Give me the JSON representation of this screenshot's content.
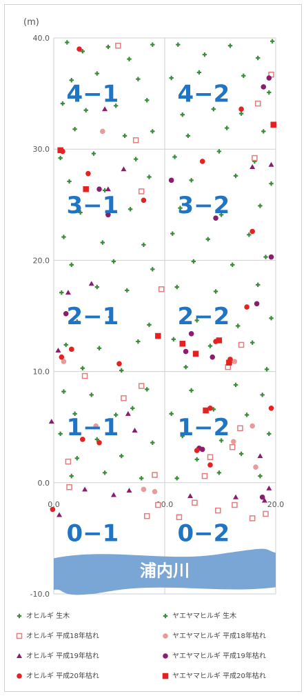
{
  "chart_data": {
    "type": "scatter",
    "unit_label": "(m)",
    "xlim": [
      0,
      20
    ],
    "ylim": [
      -10,
      40
    ],
    "x_ticks": [
      "0.0",
      "10.0",
      "20.0"
    ],
    "y_ticks": [
      "-10.0",
      "0.0",
      "10.0",
      "20.0",
      "30.0",
      "40.0"
    ],
    "grid": true,
    "sectors": [
      {
        "label": "4−1",
        "x": 3.5,
        "y": 35
      },
      {
        "label": "4−2",
        "x": 13.5,
        "y": 35
      },
      {
        "label": "3−1",
        "x": 3.5,
        "y": 25
      },
      {
        "label": "3−2",
        "x": 13.5,
        "y": 25
      },
      {
        "label": "2−1",
        "x": 3.5,
        "y": 15
      },
      {
        "label": "2−2",
        "x": 13.5,
        "y": 15
      },
      {
        "label": "1−1",
        "x": 3.5,
        "y": 5
      },
      {
        "label": "1−2",
        "x": 13.5,
        "y": 5
      },
      {
        "label": "0−1",
        "x": 3.5,
        "y": -4.5
      },
      {
        "label": "0−2",
        "x": 13.5,
        "y": -4.5
      }
    ],
    "river_label": "浦内川",
    "legend": [
      "オヒルギ 生木",
      "ヤエヤマヒルギ 生木",
      "オヒルギ 平成18年枯れ",
      "ヤエヤマヒルギ 平成18年枯れ",
      "オヒルギ 平成19年枯れ",
      "ヤエヤマヒルギ 平成19年枯れ",
      "オヒルギ 平成20年枯れ",
      "ヤエヤマヒルギ 平成20年枯れ"
    ],
    "series": [
      {
        "marker": "plus",
        "color": "#3c8a3c",
        "points": [
          [
            1.2,
            39.6
          ],
          [
            2.6,
            38.8
          ],
          [
            4.9,
            39.2
          ],
          [
            6.8,
            38.1
          ],
          [
            8.9,
            39.4
          ],
          [
            1.6,
            36.2
          ],
          [
            3.9,
            36.8
          ],
          [
            7.6,
            36.3
          ],
          [
            0.8,
            34.1
          ],
          [
            2.9,
            33.5
          ],
          [
            5.6,
            33.9
          ],
          [
            8.4,
            34.4
          ],
          [
            1.9,
            31.8
          ],
          [
            6.4,
            31.2
          ],
          [
            8.9,
            31.6
          ],
          [
            0.6,
            29.2
          ],
          [
            3.6,
            29.6
          ],
          [
            7.4,
            29.1
          ],
          [
            1.4,
            27.1
          ],
          [
            4.6,
            26.3
          ],
          [
            8.6,
            27.5
          ],
          [
            2.4,
            24.3
          ],
          [
            6.9,
            24.6
          ],
          [
            0.9,
            22.1
          ],
          [
            4.4,
            21.6
          ],
          [
            8.1,
            21.4
          ],
          [
            1.6,
            19.6
          ],
          [
            5.4,
            19.9
          ],
          [
            8.9,
            19.2
          ],
          [
            0.7,
            17.1
          ],
          [
            3.9,
            17.6
          ],
          [
            6.6,
            17.3
          ],
          [
            2.1,
            14.5
          ],
          [
            5.1,
            14.9
          ],
          [
            8.6,
            14.2
          ],
          [
            1.1,
            12.4
          ],
          [
            4.1,
            12.1
          ],
          [
            7.6,
            12.7
          ],
          [
            2.6,
            10.3
          ],
          [
            6.1,
            10.1
          ],
          [
            0.9,
            8.2
          ],
          [
            3.4,
            7.9
          ],
          [
            8.4,
            8.4
          ],
          [
            1.9,
            6.2
          ],
          [
            5.6,
            6.1
          ],
          [
            7.1,
            6.7
          ],
          [
            0.6,
            4.4
          ],
          [
            3.9,
            3.9
          ],
          [
            8.9,
            3.6
          ],
          [
            2.1,
            2.2
          ],
          [
            6.1,
            2.4
          ],
          [
            1.6,
            0.6
          ],
          [
            4.6,
            0.9
          ],
          [
            7.9,
            0.4
          ]
        ]
      },
      {
        "marker": "plus",
        "color": "#3c8a3c",
        "points": [
          [
            11.2,
            39.4
          ],
          [
            13.6,
            38.5
          ],
          [
            15.9,
            39.3
          ],
          [
            18.4,
            38.2
          ],
          [
            19.7,
            39.7
          ],
          [
            10.6,
            36.4
          ],
          [
            13.1,
            36.9
          ],
          [
            17.1,
            36.6
          ],
          [
            19.4,
            35.1
          ],
          [
            11.6,
            33.1
          ],
          [
            14.4,
            33.6
          ],
          [
            16.9,
            33.2
          ],
          [
            12.1,
            31.2
          ],
          [
            15.6,
            31.9
          ],
          [
            18.9,
            31.6
          ],
          [
            10.9,
            29.3
          ],
          [
            14.9,
            29.8
          ],
          [
            18.1,
            28.9
          ],
          [
            12.4,
            27.2
          ],
          [
            16.4,
            27.6
          ],
          [
            19.6,
            26.9
          ],
          [
            11.4,
            24.7
          ],
          [
            15.1,
            24.1
          ],
          [
            18.6,
            24.9
          ],
          [
            10.7,
            22.4
          ],
          [
            13.9,
            21.9
          ],
          [
            17.6,
            22.3
          ],
          [
            12.6,
            19.9
          ],
          [
            16.1,
            19.6
          ],
          [
            19.1,
            20.3
          ],
          [
            11.1,
            17.6
          ],
          [
            14.6,
            17.2
          ],
          [
            18.4,
            17.8
          ],
          [
            12.9,
            14.6
          ],
          [
            16.6,
            14.1
          ],
          [
            19.6,
            14.8
          ],
          [
            10.8,
            12.9
          ],
          [
            14.1,
            12.3
          ],
          [
            17.9,
            12.6
          ],
          [
            11.9,
            10.4
          ],
          [
            15.9,
            10.8
          ],
          [
            19.2,
            10.2
          ],
          [
            12.4,
            8.3
          ],
          [
            16.4,
            8.8
          ],
          [
            18.8,
            7.9
          ],
          [
            10.6,
            6.2
          ],
          [
            14.4,
            6.6
          ],
          [
            17.4,
            6.1
          ],
          [
            11.6,
            4.2
          ],
          [
            15.1,
            3.8
          ],
          [
            19.4,
            4.4
          ],
          [
            12.9,
            2.1
          ],
          [
            16.9,
            2.6
          ],
          [
            11.1,
            0.4
          ],
          [
            14.9,
            0.9
          ],
          [
            18.6,
            0.6
          ]
        ]
      },
      {
        "marker": "square",
        "color": "#e37b7b",
        "points": [
          [
            5.8,
            39.3
          ],
          [
            7.4,
            30.8
          ],
          [
            7.9,
            26.2
          ],
          [
            9.7,
            17.4
          ],
          [
            7.9,
            8.7
          ],
          [
            6.3,
            7.6
          ],
          [
            2.8,
            9.6
          ],
          [
            1.3,
            1.9
          ],
          [
            1.4,
            -0.4
          ],
          [
            9.1,
            0.7
          ],
          [
            9.4,
            -2.0
          ],
          [
            8.4,
            -3.0
          ],
          [
            19.6,
            36.7
          ],
          [
            18.4,
            34.1
          ],
          [
            18.1,
            29.2
          ],
          [
            16.9,
            12.4
          ],
          [
            15.7,
            10.4
          ],
          [
            16.8,
            4.9
          ],
          [
            16.1,
            3.2
          ],
          [
            14.1,
            2.3
          ],
          [
            13.6,
            0.6
          ],
          [
            12.7,
            -1.8
          ],
          [
            11.3,
            -3.1
          ],
          [
            14.8,
            -2.5
          ],
          [
            16.3,
            -2.0
          ],
          [
            17.9,
            -3.2
          ],
          [
            19.1,
            -2.8
          ]
        ]
      },
      {
        "marker": "circle",
        "color": "#e99b9b",
        "points": [
          [
            4.4,
            31.6
          ],
          [
            0.9,
            10.9
          ],
          [
            3.8,
            5.1
          ],
          [
            8.1,
            -0.6
          ],
          [
            9.1,
            -0.8
          ],
          [
            16.3,
            10.9
          ],
          [
            17.9,
            5.1
          ],
          [
            16.2,
            3.7
          ],
          [
            18.2,
            1.4
          ]
        ]
      },
      {
        "marker": "triangle",
        "color": "#8b1d6d",
        "points": [
          [
            4.6,
            33.6
          ],
          [
            6.3,
            28.2
          ],
          [
            4.9,
            26.4
          ],
          [
            4.9,
            24.3
          ],
          [
            1.3,
            17.1
          ],
          [
            3.4,
            17.9
          ],
          [
            0.4,
            11.9
          ],
          [
            -0.2,
            5.5
          ],
          [
            6.7,
            6.2
          ],
          [
            7.3,
            4.7
          ],
          [
            0.5,
            -2.9
          ],
          [
            2.8,
            -0.6
          ],
          [
            5.4,
            -1.1
          ],
          [
            6.8,
            -0.7
          ],
          [
            12.3,
            -1.2
          ],
          [
            19.6,
            28.6
          ],
          [
            17.9,
            28.4
          ],
          [
            18.6,
            2.4
          ],
          [
            19.4,
            -0.5
          ],
          [
            19.0,
            -1.6
          ],
          [
            16.4,
            -1.3
          ]
        ]
      },
      {
        "marker": "circle",
        "color": "#8b1d6d",
        "points": [
          [
            10.6,
            27.2
          ],
          [
            4.1,
            26.4
          ],
          [
            14.6,
            23.8
          ],
          [
            1.1,
            15.2
          ],
          [
            12.4,
            13.4
          ],
          [
            11.9,
            11.8
          ],
          [
            14.3,
            11.3
          ],
          [
            19.6,
            20.3
          ],
          [
            18.9,
            35.6
          ],
          [
            19.4,
            36.4
          ],
          [
            18.3,
            16.1
          ],
          [
            13.1,
            3.1
          ],
          [
            13.4,
            3.0
          ],
          [
            18.8,
            -1.3
          ],
          [
            4.9,
            24.1
          ]
        ]
      },
      {
        "marker": "circle",
        "color": "#e52222",
        "points": [
          [
            2.3,
            39.0
          ],
          [
            0.8,
            29.8
          ],
          [
            3.1,
            27.8
          ],
          [
            8.1,
            25.4
          ],
          [
            1.6,
            12.0
          ],
          [
            0.7,
            11.3
          ],
          [
            2.6,
            3.9
          ],
          [
            4.1,
            3.6
          ],
          [
            5.9,
            10.7
          ],
          [
            13.4,
            28.9
          ],
          [
            16.9,
            33.6
          ],
          [
            17.9,
            22.6
          ],
          [
            17.4,
            15.8
          ],
          [
            14.6,
            12.7
          ],
          [
            15.9,
            11.1
          ],
          [
            14.1,
            6.7
          ],
          [
            14.1,
            1.6
          ],
          [
            12.9,
            2.9
          ],
          [
            19.6,
            6.7
          ],
          [
            -0.1,
            -2.4
          ]
        ]
      },
      {
        "marker": "square",
        "color": "#e52222",
        "points": [
          [
            0.6,
            29.9
          ],
          [
            2.9,
            26.4
          ],
          [
            9.4,
            13.2
          ],
          [
            13.7,
            6.5
          ],
          [
            11.6,
            12.5
          ],
          [
            12.8,
            11.6
          ],
          [
            15.8,
            10.8
          ],
          [
            19.8,
            32.2
          ],
          [
            14.9,
            12.8
          ]
        ]
      }
    ]
  }
}
